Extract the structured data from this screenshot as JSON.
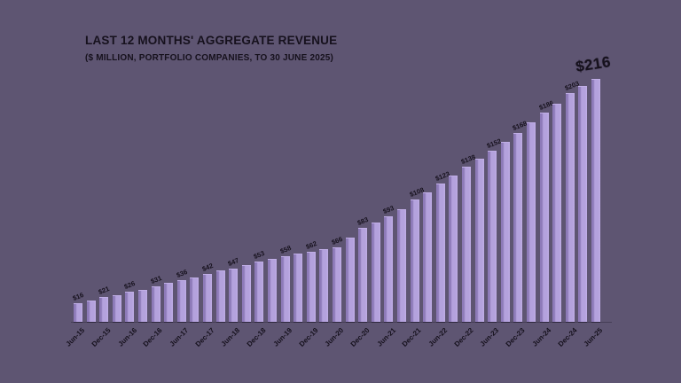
{
  "title": "LAST 12 MONTHS' AGGREGATE REVENUE",
  "subtitle": "($ MILLION, PORTFOLIO COMPANIES, TO 30 JUNE 2025)",
  "colors": {
    "background": "#5e5572",
    "bar_fill": "#b4a2dd",
    "bar_highlight": "#c0aee6",
    "bar_shade": "#8d7ab8",
    "text": "#16111d"
  },
  "chart_data": {
    "type": "bar",
    "title": "LAST 12 MONTHS' AGGREGATE REVENUE",
    "subtitle": "($ MILLION, PORTFOLIO COMPANIES, TO 30 JUNE 2025)",
    "frequency": "quarterly",
    "units": "$ million",
    "grid": false,
    "legend": "none",
    "y_axis_shown": false,
    "ylim": [
      0,
      216
    ],
    "x": [
      "Jun-15",
      "Sep-15",
      "Dec-15",
      "Mar-16",
      "Jun-16",
      "Sep-16",
      "Dec-16",
      "Mar-17",
      "Jun-17",
      "Sep-17",
      "Dec-17",
      "Mar-18",
      "Jun-18",
      "Sep-18",
      "Dec-18",
      "Mar-19",
      "Jun-19",
      "Sep-19",
      "Dec-19",
      "Mar-20",
      "Jun-20",
      "Sep-20",
      "Dec-20",
      "Mar-21",
      "Jun-21",
      "Sep-21",
      "Dec-21",
      "Mar-22",
      "Jun-22",
      "Sep-22",
      "Dec-22",
      "Mar-23",
      "Jun-23",
      "Sep-23",
      "Dec-23",
      "Mar-24",
      "Jun-24",
      "Sep-24",
      "Dec-24",
      "Mar-25",
      "Jun-25"
    ],
    "values": [
      16,
      18,
      21,
      23,
      26,
      28,
      31,
      34,
      36,
      39,
      42,
      45,
      47,
      50,
      53,
      55,
      58,
      60,
      62,
      64,
      66,
      74,
      83,
      88,
      93,
      100,
      108,
      115,
      123,
      130,
      138,
      145,
      152,
      160,
      168,
      177,
      186,
      194,
      203,
      210,
      216
    ],
    "tick_every": 2,
    "tick_labels": [
      "Jun-15",
      "Dec-15",
      "Jun-16",
      "Dec-16",
      "Jun-17",
      "Dec-17",
      "Jun-18",
      "Dec-18",
      "Jun-19",
      "Dec-19",
      "Jun-20",
      "Dec-20",
      "Jun-21",
      "Dec-21",
      "Jun-22",
      "Dec-22",
      "Jun-23",
      "Dec-23",
      "Jun-24",
      "Dec-24",
      "Jun-25"
    ],
    "bar_labels": [
      "$16",
      "$21",
      "$26",
      "$31",
      "$36",
      "$42",
      "$47",
      "$53",
      "$58",
      "$62",
      "$66",
      "$83",
      "$93",
      "$108",
      "$123",
      "$138",
      "$152",
      "$168",
      "$186",
      "$203",
      "$216"
    ],
    "highlight_last": true,
    "highlight_label": "$216"
  }
}
